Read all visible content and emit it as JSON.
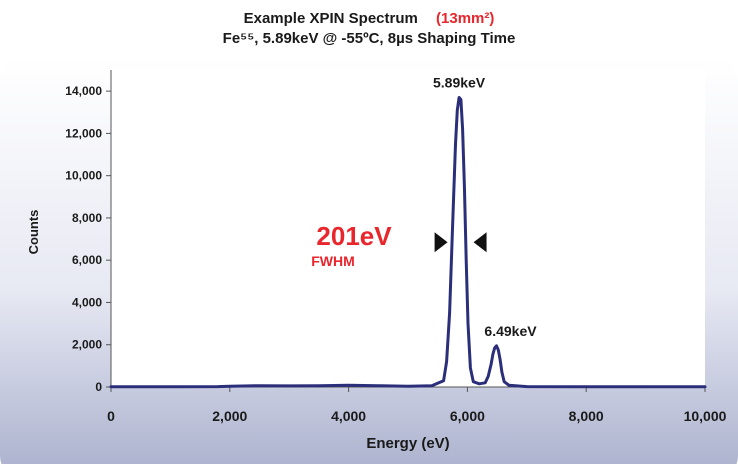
{
  "chart_data": {
    "type": "line",
    "title_line1": "Example XPIN Spectrum",
    "title_highlight": "(13mm²)",
    "title_line2": "Fe⁵⁵, 5.89keV @ -55ºC, 8µs Shaping Time",
    "xlabel": "Energy (eV)",
    "ylabel": "Counts",
    "xlim": [
      0,
      10000
    ],
    "ylim": [
      0,
      15000
    ],
    "x_ticks": [
      0,
      2000,
      4000,
      6000,
      8000,
      10000
    ],
    "x_tick_labels": [
      "0",
      "2,000",
      "4,000",
      "6,000",
      "8,000",
      "10,000"
    ],
    "y_ticks": [
      0,
      2000,
      4000,
      6000,
      8000,
      10000,
      12000,
      14000
    ],
    "y_tick_labels": [
      "0",
      "2,000",
      "4,000",
      "6,000",
      "8,000",
      "10,000",
      "12,000",
      "14,000"
    ],
    "series": [
      {
        "color": "#2b2f7a",
        "x": [
          0,
          1000,
          1800,
          2000,
          2500,
          3000,
          3500,
          4000,
          4500,
          5000,
          5400,
          5600,
          5650,
          5700,
          5750,
          5800,
          5830,
          5860,
          5890,
          5920,
          5950,
          5980,
          6010,
          6050,
          6100,
          6200,
          6300,
          6350,
          6400,
          6430,
          6460,
          6490,
          6520,
          6550,
          6580,
          6620,
          6700,
          7000,
          8000,
          9000,
          10000
        ],
        "y": [
          10,
          10,
          20,
          40,
          60,
          50,
          60,
          80,
          60,
          40,
          60,
          300,
          1200,
          3500,
          7500,
          11500,
          13100,
          13700,
          13600,
          12200,
          9500,
          6000,
          3000,
          900,
          250,
          150,
          200,
          500,
          1100,
          1550,
          1850,
          1950,
          1750,
          1300,
          700,
          250,
          80,
          20,
          10,
          10,
          10
        ]
      }
    ],
    "annotations": {
      "peak_main": "5.89keV",
      "peak_secondary": "6.49keV",
      "resolution_value": "201eV",
      "resolution_label": "FWHM"
    },
    "annotation_color": "#e8262c",
    "grid": false,
    "legend": "none"
  }
}
